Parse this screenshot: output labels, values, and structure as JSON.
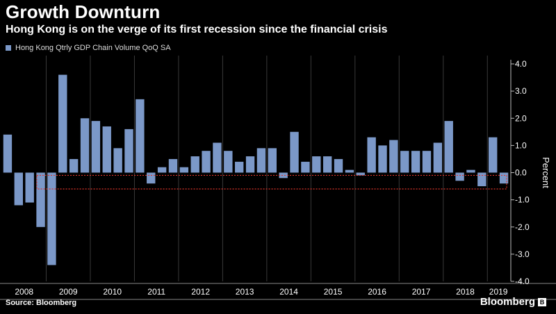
{
  "header": {
    "title": "Growth Downturn",
    "subtitle": "Hong Kong is on the verge of its first recession since the financial crisis"
  },
  "footer": {
    "source": "Source: Bloomberg",
    "brand": "Bloomberg"
  },
  "colors": {
    "background": "#000000",
    "bar": "#7b98c8",
    "highlight_box": "#e0352b",
    "grid": "#3a3a3a"
  },
  "chart_data": {
    "type": "bar",
    "legend": [
      "Hong Kong Qtrly GDP Chain Volume QoQ SA"
    ],
    "legend_position": "top-left",
    "ylabel": "Percent",
    "y_axis_side": "right",
    "ylim": [
      -4.0,
      4.0
    ],
    "yticks": [
      "4.0",
      "3.0",
      "2.0",
      "1.0",
      "0.0",
      "-1.0",
      "-2.0",
      "-3.0",
      "-4.0"
    ],
    "ytick_values": [
      4,
      3,
      2,
      1,
      0,
      -1,
      -2,
      -3,
      -4
    ],
    "grid": "vertical year separators",
    "year_labels": [
      "2008",
      "2009",
      "2010",
      "2011",
      "2012",
      "2013",
      "2014",
      "2015",
      "2016",
      "2017",
      "2018",
      "2019"
    ],
    "year_quarter_counts": [
      4,
      4,
      4,
      4,
      4,
      4,
      4,
      4,
      4,
      4,
      4,
      2
    ],
    "series": [
      {
        "name": "Hong Kong Qtrly GDP Chain Volume QoQ SA",
        "values": [
          1.4,
          -1.2,
          -1.1,
          -2.0,
          -3.4,
          3.6,
          0.5,
          2.0,
          1.9,
          1.7,
          0.9,
          1.6,
          2.7,
          -0.4,
          0.2,
          0.5,
          0.2,
          0.6,
          0.8,
          1.1,
          0.8,
          0.4,
          0.6,
          0.9,
          0.9,
          -0.2,
          1.5,
          0.4,
          0.6,
          0.6,
          0.5,
          0.1,
          -0.1,
          1.3,
          1.0,
          1.2,
          0.8,
          0.8,
          0.8,
          1.1,
          1.9,
          -0.3,
          0.1,
          -0.5,
          1.3,
          -0.4
        ]
      }
    ],
    "highlight_range": [
      -0.6,
      -0.1
    ]
  }
}
